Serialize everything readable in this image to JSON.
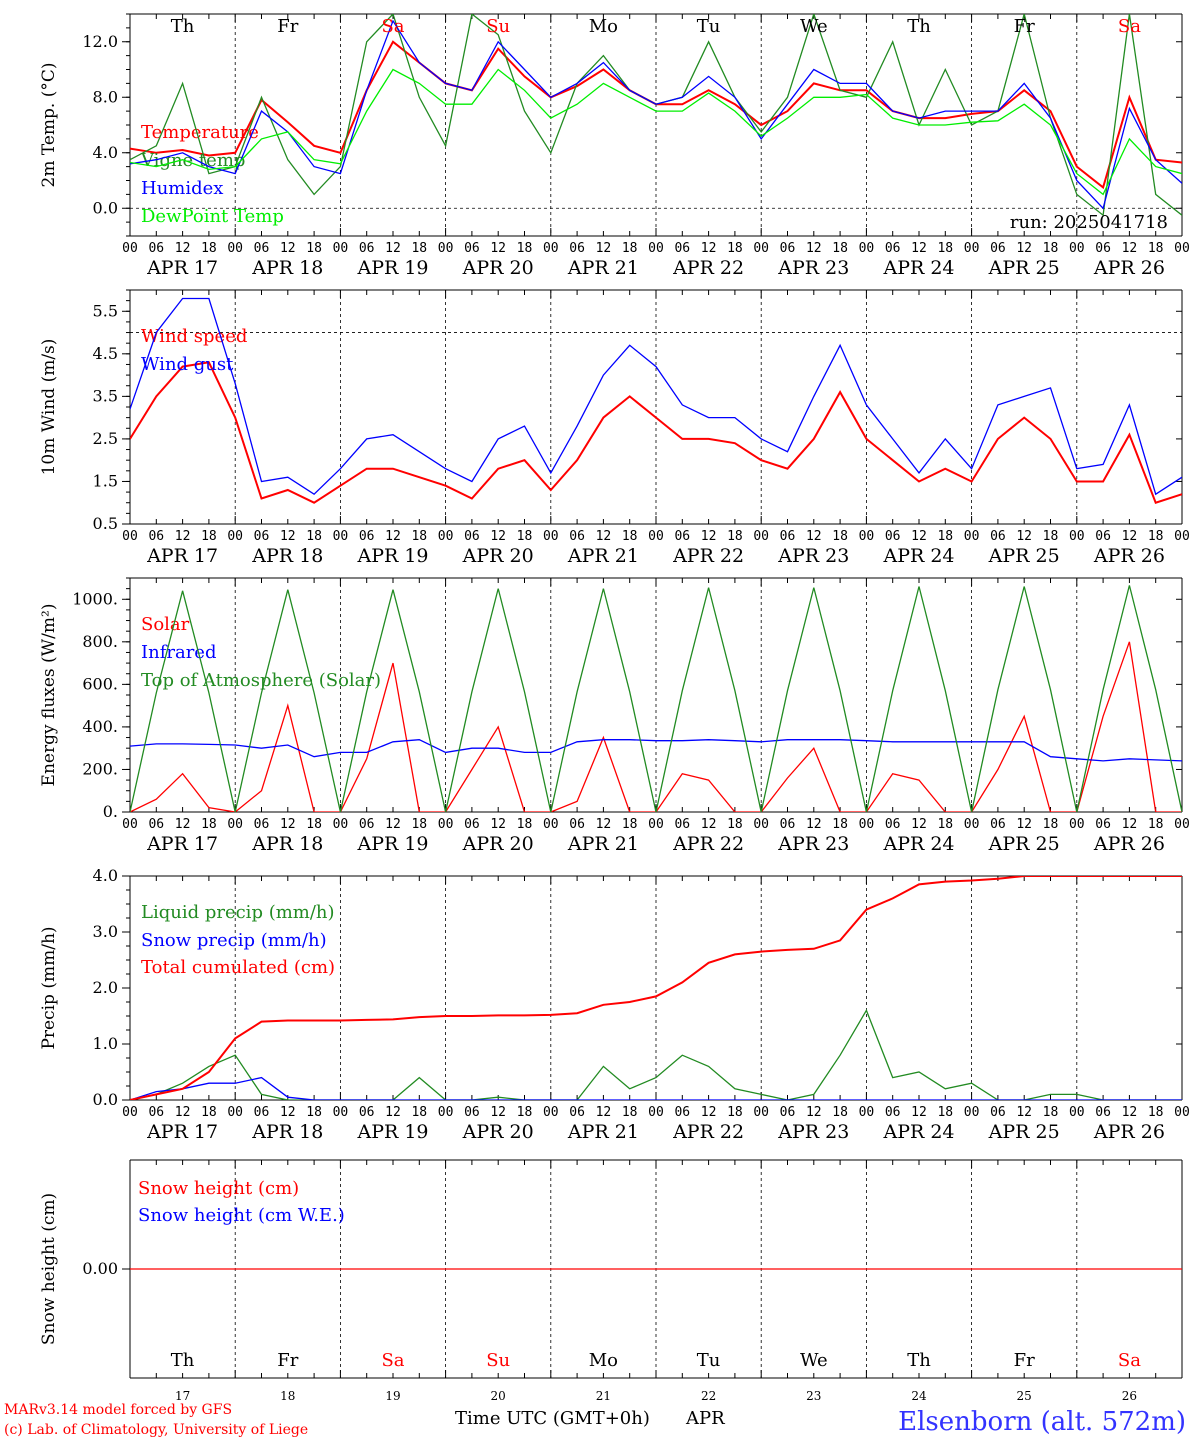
{
  "x_axis": {
    "hour_ticks": [
      "00",
      "06",
      "12",
      "18"
    ],
    "hour_end": "00",
    "dates": [
      "APR 17",
      "APR 18",
      "APR 19",
      "APR 20",
      "APR 21",
      "APR 22",
      "APR 23",
      "APR 24",
      "APR 25",
      "APR 26"
    ],
    "weekdays": [
      "Th",
      "Fr",
      "Sa",
      "Su",
      "Mo",
      "Tu",
      "We",
      "Th",
      "Fr",
      "Sa"
    ],
    "weekday_colors": [
      "#000000",
      "#000000",
      "#ff0000",
      "#ff0000",
      "#000000",
      "#000000",
      "#000000",
      "#000000",
      "#000000",
      "#ff0000"
    ],
    "day_numbers": [
      "17",
      "18",
      "19",
      "20",
      "21",
      "22",
      "23",
      "24",
      "25",
      "26"
    ],
    "month": "APR",
    "title": "Time UTC (GMT+0h)"
  },
  "footer": {
    "credit1": "MARv3.14 model forced by GFS",
    "credit2": "(c) Lab. of Climatology, University of Liege",
    "station": "Elsenborn (alt. 572m)"
  },
  "colors": {
    "red": "#ff0000",
    "green": "#228b22",
    "blue": "#0000ff",
    "lime": "#00ee00"
  },
  "chart_data": [
    {
      "type": "line",
      "ylabel": "2m Temp. (°C)",
      "ylim": [
        -2,
        14
      ],
      "yticks": [
        "0.0",
        "4.0",
        "8.0",
        "12.0"
      ],
      "ytick_values": [
        0,
        4,
        8,
        12
      ],
      "run_label": "run: 2025041718",
      "dashed_y": 0,
      "x_hours_per_point": 6,
      "series": [
        {
          "name": "Temperature",
          "color": "#ff0000",
          "values": [
            4.3,
            4.0,
            4.2,
            3.8,
            4.0,
            7.8,
            6.2,
            4.5,
            4.0,
            8.5,
            12.0,
            10.5,
            9.0,
            8.5,
            11.5,
            9.5,
            8.0,
            8.8,
            10.0,
            8.5,
            7.5,
            7.5,
            8.5,
            7.5,
            6.0,
            7.0,
            9.0,
            8.5,
            8.5,
            7.0,
            6.5,
            6.5,
            6.8,
            7.0,
            8.5,
            7.0,
            3.0,
            1.5,
            8.0,
            3.5,
            3.3
          ]
        },
        {
          "name": "Vigne temp",
          "color": "#228b22",
          "values": [
            3.5,
            4.5,
            9.0,
            2.5,
            3.0,
            8.0,
            3.5,
            1.0,
            3.0,
            12.0,
            14.0,
            8.0,
            4.5,
            14.0,
            12.5,
            7.0,
            4.0,
            9.0,
            11.0,
            8.5,
            7.5,
            8.0,
            12.0,
            8.0,
            5.5,
            8.0,
            14.0,
            8.5,
            8.0,
            12.0,
            6.0,
            10.0,
            6.0,
            7.0,
            14.0,
            6.5,
            1.0,
            -0.5,
            14.0,
            1.0,
            -0.5
          ]
        },
        {
          "name": "Humidex",
          "color": "#0000ff",
          "values": [
            3.2,
            3.5,
            4.0,
            3.0,
            2.5,
            7.0,
            5.5,
            3.0,
            2.5,
            8.5,
            13.5,
            10.5,
            9.0,
            8.5,
            12.0,
            10.0,
            8.0,
            9.0,
            10.5,
            8.5,
            7.5,
            8.0,
            9.5,
            8.0,
            5.0,
            7.5,
            10.0,
            9.0,
            9.0,
            7.0,
            6.5,
            7.0,
            7.0,
            7.0,
            9.0,
            6.5,
            2.0,
            0.0,
            7.2,
            3.5,
            1.8
          ]
        },
        {
          "name": "DewPoint Temp",
          "color": "#00ee00",
          "values": [
            3.3,
            3.0,
            3.5,
            2.8,
            3.0,
            5.0,
            5.5,
            3.5,
            3.2,
            7.0,
            10.0,
            9.0,
            7.5,
            7.5,
            10.0,
            8.5,
            6.5,
            7.5,
            9.0,
            8.0,
            7.0,
            7.0,
            8.3,
            7.0,
            5.2,
            6.5,
            8.0,
            8.0,
            8.2,
            6.5,
            6.0,
            6.0,
            6.2,
            6.3,
            7.5,
            6.0,
            2.5,
            1.0,
            5.0,
            3.0,
            2.5
          ]
        }
      ]
    },
    {
      "type": "line",
      "ylabel": "10m Wind (m/s)",
      "ylim": [
        0.5,
        6.0
      ],
      "yticks": [
        "0.5",
        "1.5",
        "2.5",
        "3.5",
        "4.5",
        "5.5"
      ],
      "ytick_values": [
        0.5,
        1.5,
        2.5,
        3.5,
        4.5,
        5.5
      ],
      "dashed_y": 5.0,
      "x_hours_per_point": 6,
      "series": [
        {
          "name": "Wind speed",
          "color": "#ff0000",
          "values": [
            2.5,
            3.5,
            4.2,
            4.3,
            3.0,
            1.1,
            1.3,
            1.0,
            1.4,
            1.8,
            1.8,
            1.6,
            1.4,
            1.1,
            1.8,
            2.0,
            1.3,
            2.0,
            3.0,
            3.5,
            3.0,
            2.5,
            2.5,
            2.4,
            2.0,
            1.8,
            2.5,
            3.6,
            2.5,
            2.0,
            1.5,
            1.8,
            1.5,
            2.5,
            3.0,
            2.5,
            1.5,
            1.5,
            2.6,
            1.0,
            1.2
          ]
        },
        {
          "name": "Wind gust",
          "color": "#0000ff",
          "values": [
            3.2,
            5.0,
            5.8,
            5.8,
            3.8,
            1.5,
            1.6,
            1.2,
            1.8,
            2.5,
            2.6,
            2.2,
            1.8,
            1.5,
            2.5,
            2.8,
            1.7,
            2.8,
            4.0,
            4.7,
            4.2,
            3.3,
            3.0,
            3.0,
            2.5,
            2.2,
            3.5,
            4.7,
            3.3,
            2.5,
            1.7,
            2.5,
            1.8,
            3.3,
            3.5,
            3.7,
            1.8,
            1.9,
            3.3,
            1.2,
            1.6
          ]
        }
      ]
    },
    {
      "type": "line",
      "ylabel": "Energy fluxes (W/m²)",
      "ylim": [
        0,
        1100
      ],
      "yticks": [
        "0.",
        "200.",
        "400.",
        "600.",
        "800.",
        "1000."
      ],
      "ytick_values": [
        0,
        200,
        400,
        600,
        800,
        1000
      ],
      "x_hours_per_point": 6,
      "series": [
        {
          "name": "Solar",
          "color": "#ff0000",
          "values": [
            0,
            60,
            180,
            20,
            0,
            100,
            500,
            0,
            0,
            250,
            700,
            0,
            0,
            200,
            400,
            0,
            0,
            50,
            350,
            0,
            0,
            180,
            150,
            0,
            0,
            160,
            300,
            0,
            0,
            180,
            150,
            0,
            0,
            200,
            450,
            0,
            0,
            450,
            800,
            0,
            0
          ]
        },
        {
          "name": "Infrared",
          "color": "#0000ff",
          "values": [
            310,
            320,
            320,
            318,
            315,
            300,
            315,
            260,
            280,
            280,
            330,
            340,
            280,
            300,
            300,
            280,
            280,
            330,
            340,
            340,
            335,
            335,
            340,
            335,
            330,
            340,
            340,
            340,
            335,
            330,
            330,
            330,
            330,
            330,
            330,
            260,
            250,
            240,
            250,
            245,
            240
          ]
        },
        {
          "name": "Top of Atmosphere (Solar)",
          "color": "#228b22",
          "values": [
            0,
            560,
            1040,
            560,
            0,
            560,
            1045,
            560,
            0,
            565,
            1045,
            565,
            0,
            565,
            1050,
            565,
            0,
            565,
            1050,
            565,
            0,
            570,
            1055,
            570,
            0,
            570,
            1055,
            570,
            0,
            570,
            1060,
            570,
            0,
            575,
            1060,
            575,
            0,
            575,
            1065,
            575,
            0
          ]
        }
      ]
    },
    {
      "type": "line",
      "ylabel": "Precip (mm/h)",
      "ylim": [
        0,
        4.0
      ],
      "yticks": [
        "0.0",
        "1.0",
        "2.0",
        "3.0",
        "4.0"
      ],
      "ytick_values": [
        0,
        1,
        2,
        3,
        4
      ],
      "x_hours_per_point": 6,
      "series": [
        {
          "name": "Liquid precip (mm/h)",
          "color": "#228b22",
          "values": [
            0.0,
            0.1,
            0.3,
            0.6,
            0.8,
            0.1,
            0.0,
            0.0,
            0.0,
            0.0,
            0.0,
            0.4,
            0.0,
            0.0,
            0.05,
            0.0,
            0.0,
            0.0,
            0.6,
            0.2,
            0.4,
            0.8,
            0.6,
            0.2,
            0.1,
            0.0,
            0.1,
            0.8,
            1.6,
            0.4,
            0.5,
            0.2,
            0.3,
            0.0,
            0.0,
            0.1,
            0.1,
            0.0,
            0.0,
            0.0,
            0.0
          ]
        },
        {
          "name": "Snow precip (mm/h)",
          "color": "#0000ff",
          "values": [
            0.0,
            0.15,
            0.2,
            0.3,
            0.3,
            0.4,
            0.05,
            0.0,
            0.0,
            0.0,
            0.0,
            0.0,
            0.0,
            0.0,
            0.0,
            0.0,
            0.0,
            0.0,
            0.0,
            0.0,
            0.0,
            0.0,
            0.0,
            0.0,
            0.0,
            0.0,
            0.0,
            0.0,
            0.0,
            0.0,
            0.0,
            0.0,
            0.0,
            0.0,
            0.0,
            0.0,
            0.0,
            0.0,
            0.0,
            0.0,
            0.0
          ]
        },
        {
          "name": "Total cumulated (cm)",
          "color": "#ff0000",
          "values": [
            0.0,
            0.1,
            0.2,
            0.5,
            1.1,
            1.4,
            1.42,
            1.42,
            1.42,
            1.43,
            1.44,
            1.48,
            1.5,
            1.5,
            1.51,
            1.51,
            1.52,
            1.55,
            1.7,
            1.75,
            1.85,
            2.1,
            2.45,
            2.6,
            2.65,
            2.68,
            2.7,
            2.85,
            3.4,
            3.6,
            3.85,
            3.9,
            3.92,
            3.95,
            4.0,
            4.0,
            4.0,
            4.0,
            4.0,
            4.0,
            4.0
          ]
        }
      ]
    },
    {
      "type": "line",
      "ylabel": "Snow height (cm)",
      "ylim": [
        -1,
        1
      ],
      "yticks": [
        "0.00"
      ],
      "ytick_values": [
        0
      ],
      "x_hours_per_point": 6,
      "series": [
        {
          "name": "Snow height (cm)",
          "color": "#ff0000",
          "values": [
            0,
            0,
            0,
            0,
            0,
            0,
            0,
            0,
            0,
            0,
            0,
            0,
            0,
            0,
            0,
            0,
            0,
            0,
            0,
            0,
            0,
            0,
            0,
            0,
            0,
            0,
            0,
            0,
            0,
            0,
            0,
            0,
            0,
            0,
            0,
            0,
            0,
            0,
            0,
            0,
            0
          ]
        },
        {
          "name": "Snow height (cm W.E.)",
          "color": "#0000ff",
          "values": []
        }
      ]
    }
  ]
}
